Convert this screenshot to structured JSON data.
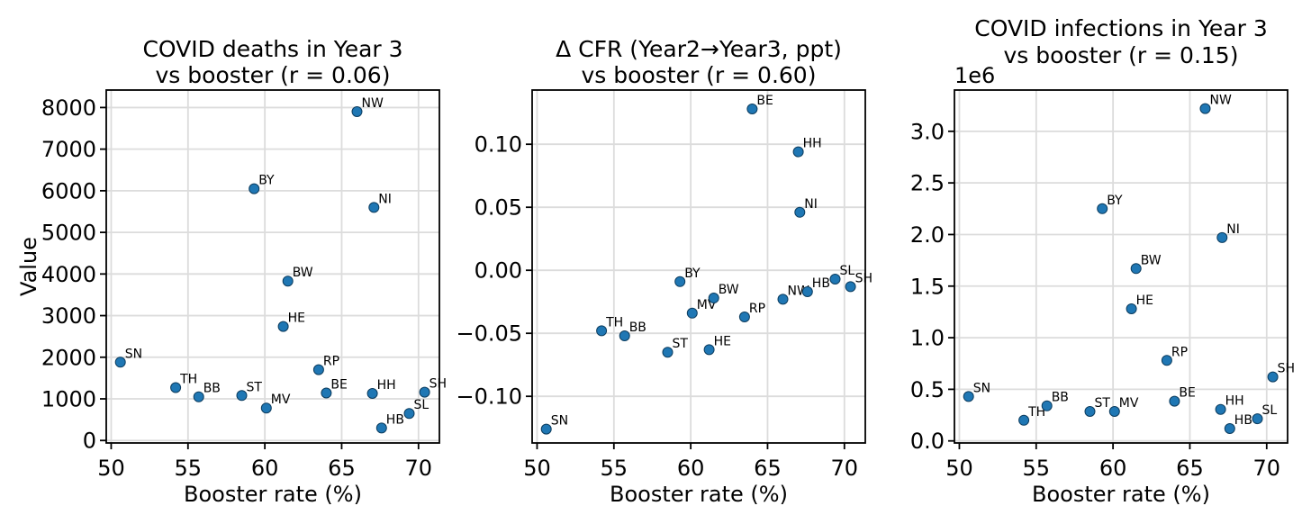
{
  "figure": {
    "background": "#ffffff",
    "text_color": "#000000",
    "grid_color": "#dcdcdc",
    "spine_color": "#000000",
    "marker": {
      "fill": "#1f77b4",
      "edge": "#0d3d5f",
      "radius": 5.5
    }
  },
  "chart_data": [
    {
      "id": "deaths",
      "type": "scatter",
      "title_lines": [
        "COVID deaths in Year 3",
        "vs booster (r = 0.06)"
      ],
      "xlabel": "Booster rate (%)",
      "ylabel": "Value",
      "offset_text": "",
      "grid": true,
      "xlim": [
        49.68,
        71.36
      ],
      "ylim": [
        -60,
        8420
      ],
      "x_ticks": {
        "values": [
          50,
          55,
          60,
          65,
          70
        ],
        "labels": [
          "50",
          "55",
          "60",
          "65",
          "70"
        ]
      },
      "y_ticks": {
        "values": [
          0,
          1000,
          2000,
          3000,
          4000,
          5000,
          6000,
          7000,
          8000
        ],
        "labels": [
          "0",
          "1000",
          "2000",
          "3000",
          "4000",
          "5000",
          "6000",
          "7000",
          "8000"
        ]
      },
      "points": [
        {
          "label": "SN",
          "x": 50.6,
          "y": 1880
        },
        {
          "label": "TH",
          "x": 54.2,
          "y": 1270
        },
        {
          "label": "BB",
          "x": 55.7,
          "y": 1050
        },
        {
          "label": "ST",
          "x": 58.5,
          "y": 1080
        },
        {
          "label": "BY",
          "x": 59.3,
          "y": 6050
        },
        {
          "label": "MV",
          "x": 60.1,
          "y": 780
        },
        {
          "label": "HE",
          "x": 61.2,
          "y": 2740
        },
        {
          "label": "BW",
          "x": 61.5,
          "y": 3830
        },
        {
          "label": "RP",
          "x": 63.5,
          "y": 1700
        },
        {
          "label": "BE",
          "x": 64.0,
          "y": 1140
        },
        {
          "label": "NW",
          "x": 66.0,
          "y": 7900
        },
        {
          "label": "HH",
          "x": 67.0,
          "y": 1130
        },
        {
          "label": "NI",
          "x": 67.1,
          "y": 5600
        },
        {
          "label": "HB",
          "x": 67.6,
          "y": 300
        },
        {
          "label": "SL",
          "x": 69.4,
          "y": 650
        },
        {
          "label": "SH",
          "x": 70.4,
          "y": 1160
        }
      ]
    },
    {
      "id": "delta_cfr",
      "type": "scatter",
      "title_lines": [
        "Δ CFR (Year2→Year3, ppt)",
        "vs booster (r = 0.60)"
      ],
      "xlabel": "Booster rate (%)",
      "ylabel": "",
      "offset_text": "",
      "grid": true,
      "xlim": [
        49.68,
        71.36
      ],
      "ylim": [
        -0.137,
        0.143
      ],
      "x_ticks": {
        "values": [
          50,
          55,
          60,
          65,
          70
        ],
        "labels": [
          "50",
          "55",
          "60",
          "65",
          "70"
        ]
      },
      "y_ticks": {
        "values": [
          -0.1,
          -0.05,
          0.0,
          0.05,
          0.1
        ],
        "labels": [
          "−0.10",
          "−0.05",
          "0.00",
          "0.05",
          "0.10"
        ]
      },
      "points": [
        {
          "label": "SN",
          "x": 50.6,
          "y": -0.126
        },
        {
          "label": "TH",
          "x": 54.2,
          "y": -0.048
        },
        {
          "label": "BB",
          "x": 55.7,
          "y": -0.052
        },
        {
          "label": "ST",
          "x": 58.5,
          "y": -0.065
        },
        {
          "label": "BY",
          "x": 59.3,
          "y": -0.009
        },
        {
          "label": "MV",
          "x": 60.1,
          "y": -0.034
        },
        {
          "label": "HE",
          "x": 61.2,
          "y": -0.063
        },
        {
          "label": "BW",
          "x": 61.5,
          "y": -0.022
        },
        {
          "label": "RP",
          "x": 63.5,
          "y": -0.037
        },
        {
          "label": "BE",
          "x": 64.0,
          "y": 0.128
        },
        {
          "label": "NW",
          "x": 66.0,
          "y": -0.023
        },
        {
          "label": "HH",
          "x": 67.0,
          "y": 0.094
        },
        {
          "label": "NI",
          "x": 67.1,
          "y": 0.046
        },
        {
          "label": "HB",
          "x": 67.6,
          "y": -0.017
        },
        {
          "label": "SL",
          "x": 69.4,
          "y": -0.007
        },
        {
          "label": "SH",
          "x": 70.4,
          "y": -0.013
        }
      ]
    },
    {
      "id": "infections",
      "type": "scatter",
      "title_lines": [
        "COVID infections in Year 3",
        "vs booster (r = 0.15)"
      ],
      "xlabel": "Booster rate (%)",
      "ylabel": "",
      "offset_text": "1e6",
      "grid": true,
      "xlim": [
        49.68,
        71.36
      ],
      "ylim": [
        -20000,
        3400000
      ],
      "x_ticks": {
        "values": [
          50,
          55,
          60,
          65,
          70
        ],
        "labels": [
          "50",
          "55",
          "60",
          "65",
          "70"
        ]
      },
      "y_ticks": {
        "values": [
          0,
          500000,
          1000000,
          1500000,
          2000000,
          2500000,
          3000000
        ],
        "labels": [
          "0.0",
          "0.5",
          "1.0",
          "1.5",
          "2.0",
          "2.5",
          "3.0"
        ]
      },
      "points": [
        {
          "label": "SN",
          "x": 50.6,
          "y": 430000
        },
        {
          "label": "TH",
          "x": 54.2,
          "y": 200000
        },
        {
          "label": "BB",
          "x": 55.7,
          "y": 340000
        },
        {
          "label": "ST",
          "x": 58.5,
          "y": 285000
        },
        {
          "label": "BY",
          "x": 59.3,
          "y": 2250000
        },
        {
          "label": "MV",
          "x": 60.1,
          "y": 285000
        },
        {
          "label": "HE",
          "x": 61.2,
          "y": 1280000
        },
        {
          "label": "BW",
          "x": 61.5,
          "y": 1670000
        },
        {
          "label": "RP",
          "x": 63.5,
          "y": 780000
        },
        {
          "label": "BE",
          "x": 64.0,
          "y": 385000
        },
        {
          "label": "NW",
          "x": 66.0,
          "y": 3220000
        },
        {
          "label": "HH",
          "x": 67.0,
          "y": 305000
        },
        {
          "label": "NI",
          "x": 67.1,
          "y": 1970000
        },
        {
          "label": "HB",
          "x": 67.6,
          "y": 120000
        },
        {
          "label": "SL",
          "x": 69.4,
          "y": 215000
        },
        {
          "label": "SH",
          "x": 70.4,
          "y": 620000
        }
      ]
    }
  ]
}
